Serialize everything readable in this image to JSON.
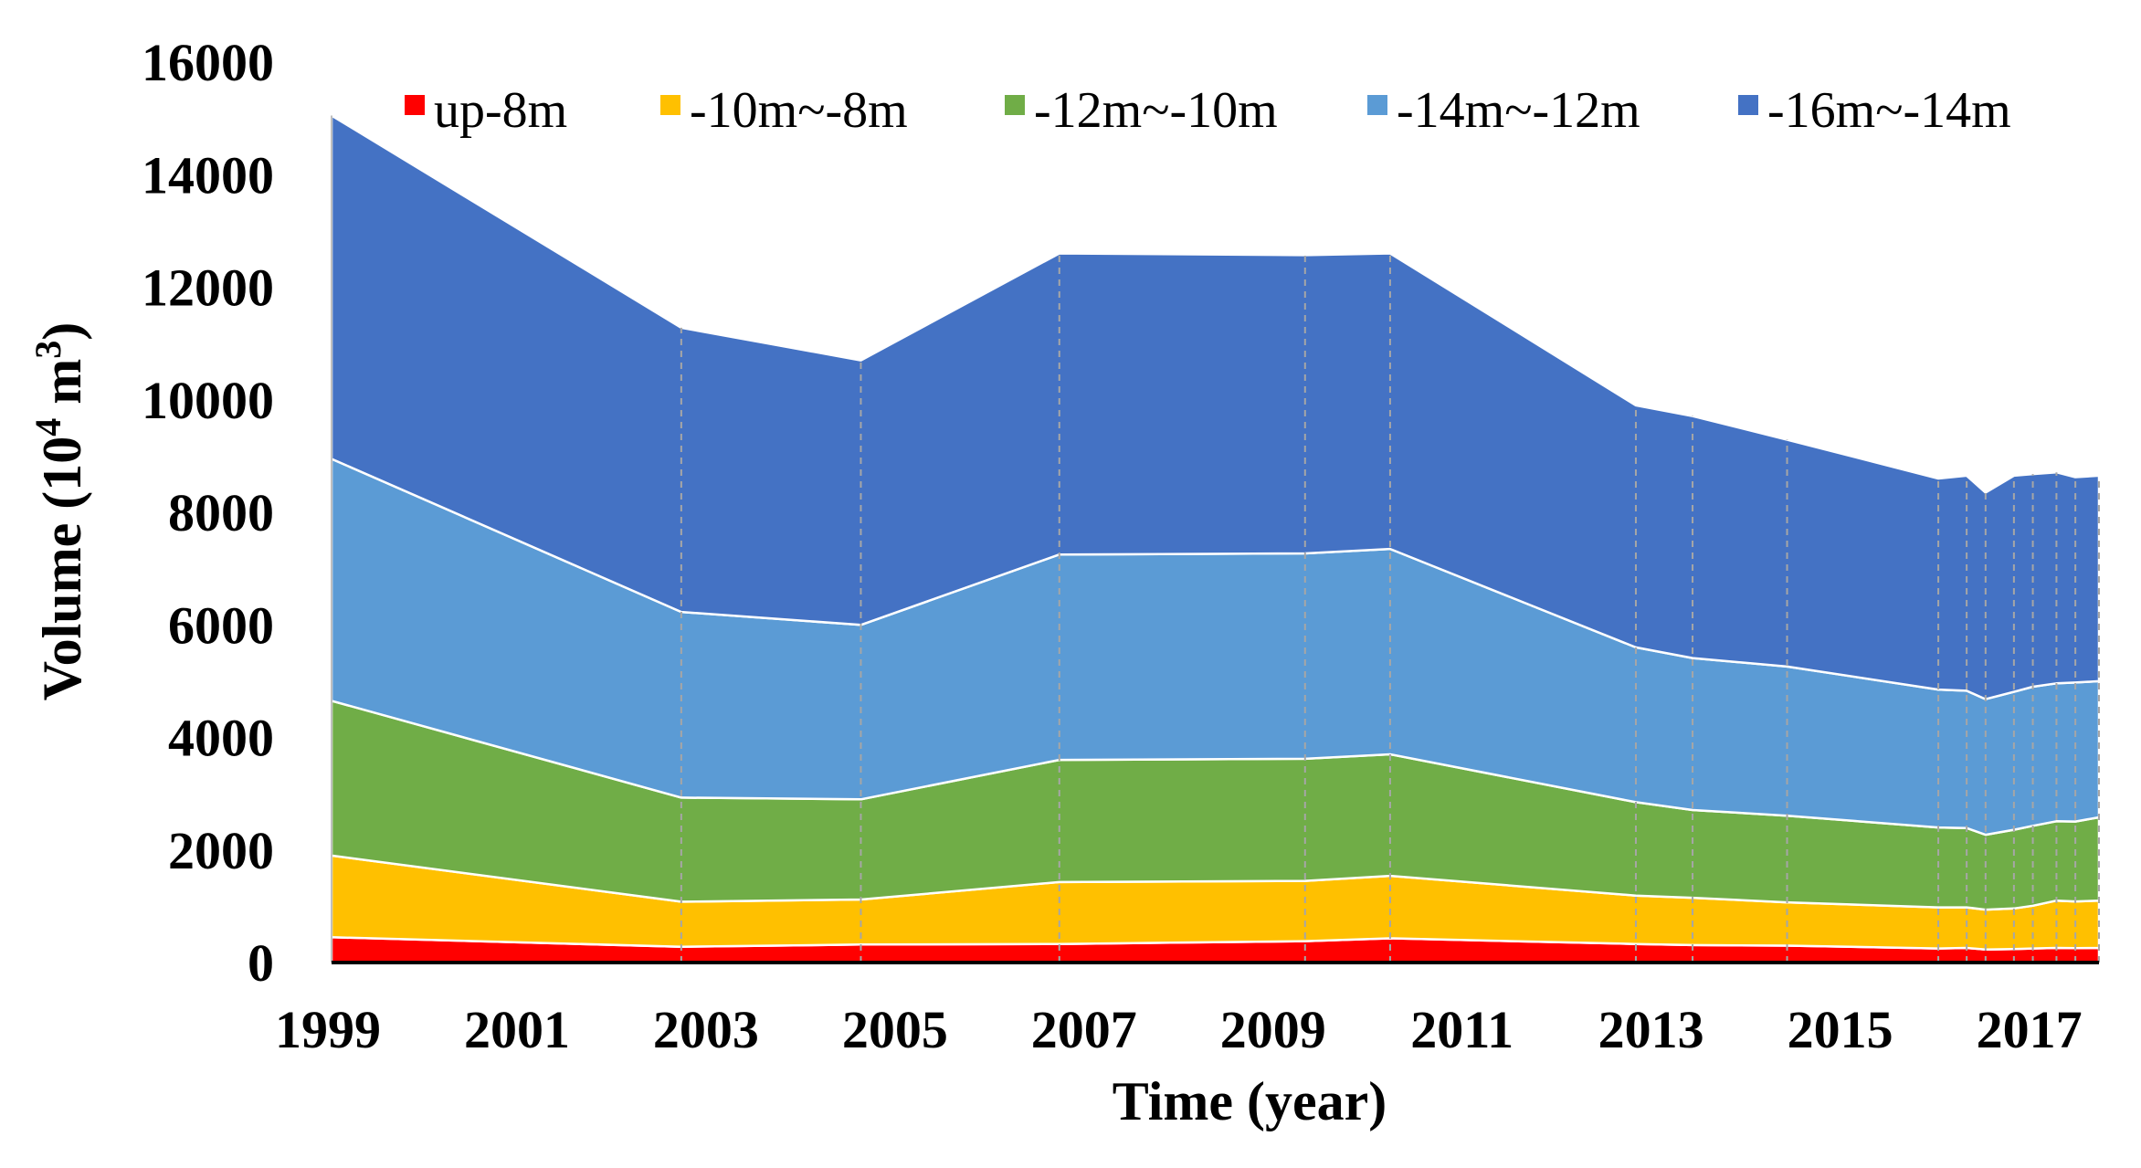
{
  "chart_data": {
    "type": "area",
    "stacked": true,
    "xlabel": "Time (year)",
    "ylabel_prefix": "Volume (10",
    "ylabel_sup1": "4",
    "ylabel_mid": " m",
    "ylabel_sup2": "3",
    "ylabel_suffix": ")",
    "xlim": [
      1999,
      2017.7
    ],
    "ylim": [
      0,
      16000
    ],
    "xticks": [
      "1999",
      "2001",
      "2003",
      "2005",
      "2007",
      "2009",
      "2011",
      "2013",
      "2015",
      "2017"
    ],
    "yticks": [
      "0",
      "2000",
      "4000",
      "6000",
      "8000",
      "10000",
      "12000",
      "14000",
      "16000"
    ],
    "vertical_guides": true,
    "legend_position": "top",
    "x": [
      1999.0,
      2002.7,
      2004.6,
      2006.7,
      2009.3,
      2010.2,
      2012.8,
      2013.4,
      2014.4,
      2016.0,
      2016.3,
      2016.5,
      2016.8,
      2017.0,
      2017.25,
      2017.45,
      2017.7
    ],
    "series": [
      {
        "name": "up-8m",
        "color": "#ff0000",
        "values": [
          450,
          280,
          320,
          330,
          380,
          430,
          330,
          310,
          300,
          250,
          260,
          230,
          240,
          250,
          260,
          255,
          260
        ]
      },
      {
        "name": "-10m~-8m",
        "color": "#ffc000",
        "values": [
          1450,
          800,
          800,
          1100,
          1070,
          1110,
          860,
          840,
          770,
          730,
          720,
          710,
          720,
          760,
          840,
          830,
          840
        ]
      },
      {
        "name": "-12m~-10m",
        "color": "#70ad47",
        "values": [
          2750,
          1850,
          1780,
          2170,
          2170,
          2160,
          1660,
          1560,
          1540,
          1420,
          1410,
          1330,
          1400,
          1420,
          1410,
          1420,
          1480
        ]
      },
      {
        "name": "-14m~-12m",
        "color": "#5b9bd5",
        "values": [
          4300,
          3300,
          3100,
          3650,
          3650,
          3650,
          2750,
          2700,
          2650,
          2450,
          2440,
          2410,
          2450,
          2470,
          2450,
          2470,
          2420
        ]
      },
      {
        "name": "-16m~-14m",
        "color": "#4472c4",
        "values": [
          6100,
          5050,
          4700,
          5350,
          5300,
          5250,
          4300,
          4300,
          4030,
          3750,
          3820,
          3670,
          3840,
          3780,
          3750,
          3650,
          3650
        ]
      }
    ]
  }
}
